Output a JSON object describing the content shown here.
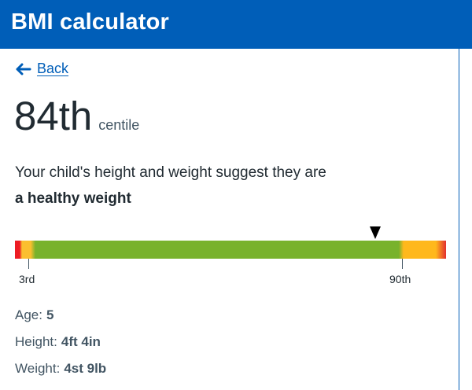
{
  "header": {
    "title": "BMI calculator"
  },
  "navigation": {
    "back_label": "Back",
    "back_icon": "left-arrow-icon"
  },
  "result": {
    "centile": "84th",
    "centile_label": "centile",
    "summary": "Your child's height and weight suggest they are",
    "status": "a healthy weight"
  },
  "scale": {
    "lower_label": "3rd",
    "upper_label": "90th",
    "marker_icon": "pointer-icon",
    "colors": {
      "low": "#ed1c24",
      "caution": "#fbbf2f",
      "healthy": "#78b22c",
      "high": "#ffb81c"
    }
  },
  "details": {
    "age_label": "Age:",
    "age_value": "5",
    "height_label": "Height:",
    "height_value": "4ft 4in",
    "weight_label": "Weight:",
    "weight_value": "4st 9lb"
  },
  "theme": {
    "primary": "#005eb8",
    "text": "#212b32",
    "secondary_text": "#425563"
  }
}
